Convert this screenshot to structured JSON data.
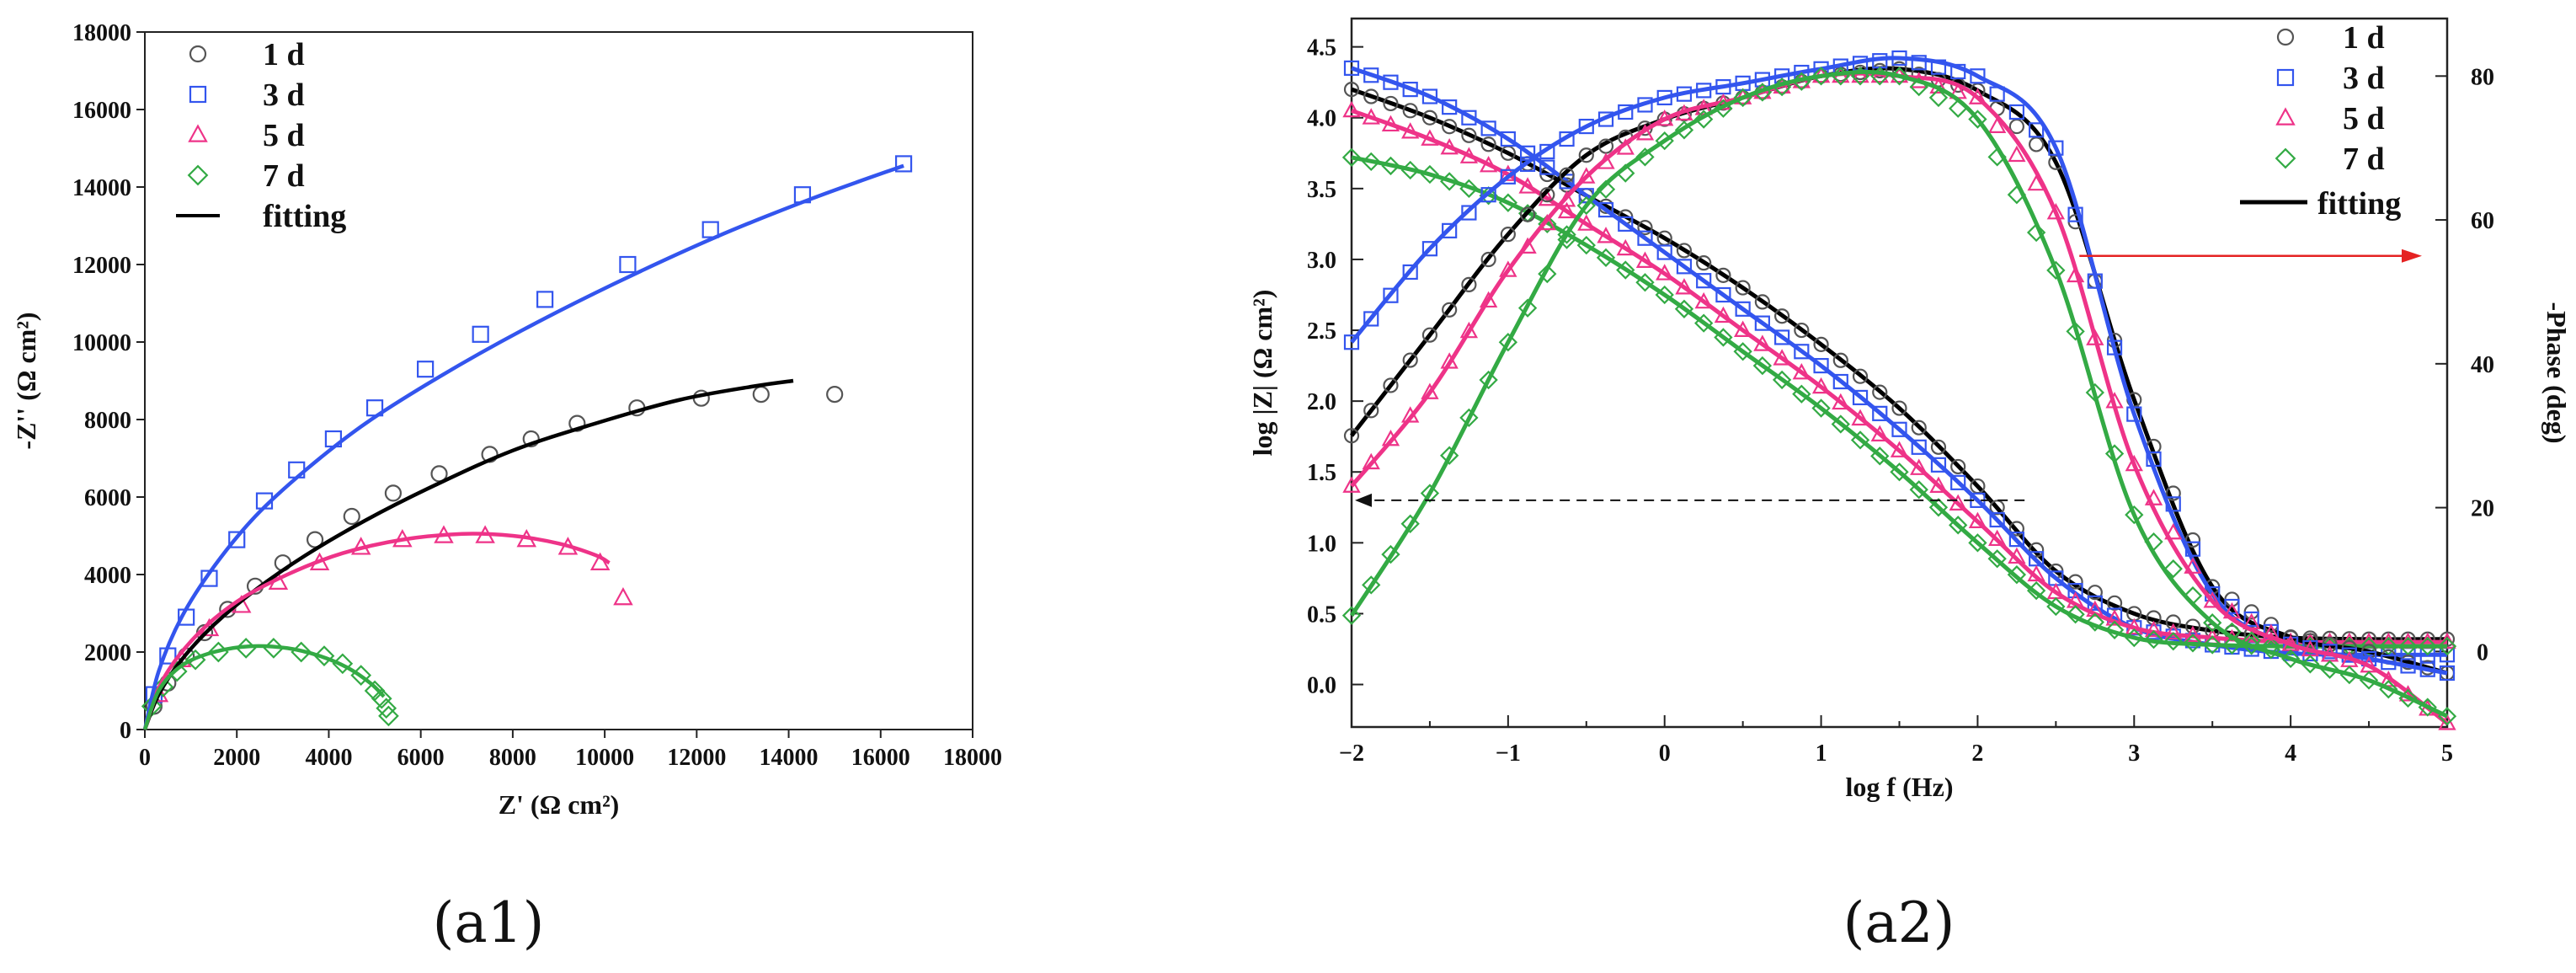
{
  "chart_data": [
    {
      "type": "scatter",
      "panel_label": "(a1)",
      "xlabel": "Z' (Ω cm²)",
      "ylabel": "-Z'' (Ω cm²)",
      "xlim": [
        0,
        18000
      ],
      "ylim": [
        0,
        18000
      ],
      "xticks": [
        0,
        2000,
        4000,
        6000,
        8000,
        10000,
        12000,
        14000,
        16000,
        18000
      ],
      "yticks": [
        0,
        2000,
        4000,
        6000,
        8000,
        10000,
        12000,
        14000,
        16000,
        18000
      ],
      "legend": [
        "1 d",
        "3 d",
        "5 d",
        "7 d",
        "fitting"
      ],
      "legend_position": "top-left",
      "series": [
        {
          "name": "1 d",
          "color": "#555555",
          "marker": "circle",
          "x": [
            200,
            500,
            900,
            1300,
            1800,
            2400,
            3000,
            3700,
            4500,
            5400,
            6400,
            7500,
            8400,
            9400,
            10700,
            12100,
            13400,
            15000
          ],
          "y": [
            600,
            1200,
            1900,
            2500,
            3100,
            3700,
            4300,
            4900,
            5500,
            6100,
            6600,
            7100,
            7500,
            7900,
            8300,
            8550,
            8650,
            8650
          ]
        },
        {
          "name": "3 d",
          "color": "#3355ee",
          "marker": "square",
          "x": [
            200,
            500,
            900,
            1400,
            2000,
            2600,
            3300,
            4100,
            5000,
            6100,
            7300,
            8700,
            10500,
            12300,
            14300,
            16500
          ],
          "y": [
            900,
            1900,
            2900,
            3900,
            4900,
            5900,
            6700,
            7500,
            8300,
            9300,
            10200,
            11100,
            12000,
            12900,
            13800,
            14600
          ]
        },
        {
          "name": "5 d",
          "color": "#ee3388",
          "marker": "triangle",
          "x": [
            300,
            800,
            1400,
            2100,
            2900,
            3800,
            4700,
            5600,
            6500,
            7400,
            8300,
            9200,
            9900,
            10400
          ],
          "y": [
            900,
            1800,
            2600,
            3200,
            3800,
            4300,
            4700,
            4900,
            5000,
            5000,
            4900,
            4700,
            4300,
            3400
          ]
        },
        {
          "name": "7 d",
          "color": "#33aa44",
          "marker": "diamond",
          "x": [
            150,
            400,
            700,
            1100,
            1600,
            2200,
            2800,
            3400,
            3900,
            4300,
            4700,
            5000,
            5150,
            5250,
            5300
          ],
          "y": [
            600,
            1100,
            1500,
            1800,
            2000,
            2100,
            2100,
            2000,
            1900,
            1700,
            1400,
            1000,
            800,
            550,
            350
          ]
        },
        {
          "name": "1 d fitting",
          "color": "#000000",
          "line": true,
          "x": [
            0,
            300,
            800,
            1500,
            2400,
            3500,
            4800,
            6300,
            8000,
            9800,
            11600,
            13200,
            14100
          ],
          "y": [
            0,
            900,
            1800,
            2700,
            3600,
            4500,
            5400,
            6300,
            7200,
            7900,
            8500,
            8850,
            9000
          ]
        },
        {
          "name": "3 d fitting",
          "color": "#3355ee",
          "line": true,
          "x": [
            0,
            300,
            800,
            1500,
            2400,
            3500,
            4800,
            6400,
            8200,
            10200,
            12400,
            14500,
            16500
          ],
          "y": [
            0,
            1500,
            2900,
            4200,
            5500,
            6700,
            7900,
            9100,
            10300,
            11500,
            12700,
            13700,
            14550
          ]
        },
        {
          "name": "5 d fitting",
          "color": "#ee3388",
          "line": true,
          "x": [
            0,
            400,
            1100,
            2000,
            3100,
            4300,
            5600,
            6900,
            8000,
            9000,
            9800,
            10100
          ],
          "y": [
            0,
            1300,
            2400,
            3300,
            4000,
            4550,
            4900,
            5050,
            5000,
            4800,
            4500,
            4300
          ]
        },
        {
          "name": "7 d fitting",
          "color": "#33aa44",
          "line": true,
          "x": [
            0,
            300,
            800,
            1500,
            2300,
            3100,
            3800,
            4400,
            4900,
            5200
          ],
          "y": [
            0,
            1000,
            1650,
            2000,
            2150,
            2100,
            1900,
            1600,
            1200,
            850
          ]
        }
      ]
    },
    {
      "type": "line",
      "panel_label": "(a2)",
      "xlabel": "log f (Hz)",
      "ylabel": "log |Z| (Ω cm²)",
      "y2label": "-Phase (deg)",
      "xlim": [
        -2,
        5
      ],
      "ylim": [
        -0.3,
        4.7
      ],
      "y2lim": [
        -10.5,
        88
      ],
      "xticks": [
        -2,
        -1,
        0,
        1,
        2,
        3,
        4,
        5
      ],
      "yticks": [
        0.0,
        0.5,
        1.0,
        1.5,
        2.0,
        2.5,
        3.0,
        3.5,
        4.0,
        4.5
      ],
      "yticklabels": [
        "0.0",
        "0.5",
        "1.0",
        "1.5",
        "2.0",
        "2.5",
        "3.0",
        "3.5",
        "4.0",
        "4.5"
      ],
      "y2ticks": [
        0,
        20,
        40,
        60,
        80
      ],
      "legend": [
        "1 d",
        "3 d",
        "5 d",
        "7 d",
        "fitting"
      ],
      "legend_position": "top-right",
      "annotations": [
        "arrow to left axis at log|Z| ≈ 1.3",
        "arrow to right axis at phase ≈ 55 deg"
      ],
      "x": [
        -2,
        -1.5,
        -1,
        -0.5,
        0,
        0.5,
        1,
        1.5,
        2,
        2.5,
        3,
        3.5,
        4,
        4.5,
        5
      ],
      "series": [
        {
          "name": "1 d |Z|",
          "color": "#555555",
          "marker": "circle",
          "axis": "left",
          "y": [
            4.2,
            4.0,
            3.75,
            3.45,
            3.15,
            2.8,
            2.4,
            1.95,
            1.4,
            0.8,
            0.5,
            0.38,
            0.33,
            0.32,
            0.32
          ]
        },
        {
          "name": "3 d |Z|",
          "color": "#3355ee",
          "marker": "square",
          "axis": "left",
          "y": [
            4.35,
            4.15,
            3.85,
            3.45,
            3.05,
            2.65,
            2.25,
            1.8,
            1.3,
            0.75,
            0.4,
            0.28,
            0.22,
            0.21,
            0.21
          ]
        },
        {
          "name": "5 d |Z|",
          "color": "#ee3388",
          "marker": "triangle",
          "axis": "left",
          "y": [
            4.05,
            3.85,
            3.6,
            3.25,
            2.9,
            2.5,
            2.1,
            1.65,
            1.15,
            0.65,
            0.4,
            0.33,
            0.3,
            0.3,
            0.3
          ]
        },
        {
          "name": "7 d |Z|",
          "color": "#33aa44",
          "marker": "diamond",
          "axis": "left",
          "y": [
            3.72,
            3.6,
            3.4,
            3.1,
            2.75,
            2.35,
            1.95,
            1.5,
            1.0,
            0.55,
            0.33,
            0.28,
            0.27,
            0.27,
            0.27
          ]
        },
        {
          "name": "1 d phase",
          "color": "#555555",
          "marker": "circle",
          "axis": "right",
          "y": [
            30,
            44,
            58,
            69,
            74,
            77,
            80,
            81,
            78,
            68,
            35,
            9,
            2,
            0,
            -3
          ]
        },
        {
          "name": "3 d phase",
          "color": "#3355ee",
          "marker": "square",
          "axis": "right",
          "y": [
            43,
            56,
            66,
            73,
            77,
            79,
            81,
            82.5,
            80,
            70,
            33,
            8,
            1,
            -1,
            -3
          ]
        },
        {
          "name": "5 d phase",
          "color": "#ee3388",
          "marker": "triangle",
          "axis": "right",
          "y": [
            23,
            36,
            53,
            66,
            74,
            77,
            80,
            80,
            77,
            61,
            26,
            7,
            1,
            -2,
            -10
          ]
        },
        {
          "name": "7 d phase",
          "color": "#33aa44",
          "marker": "diamond",
          "axis": "right",
          "y": [
            5,
            22,
            43,
            62,
            71,
            77,
            80,
            80,
            74,
            53,
            19,
            4,
            -1,
            -4,
            -9
          ]
        }
      ]
    }
  ]
}
